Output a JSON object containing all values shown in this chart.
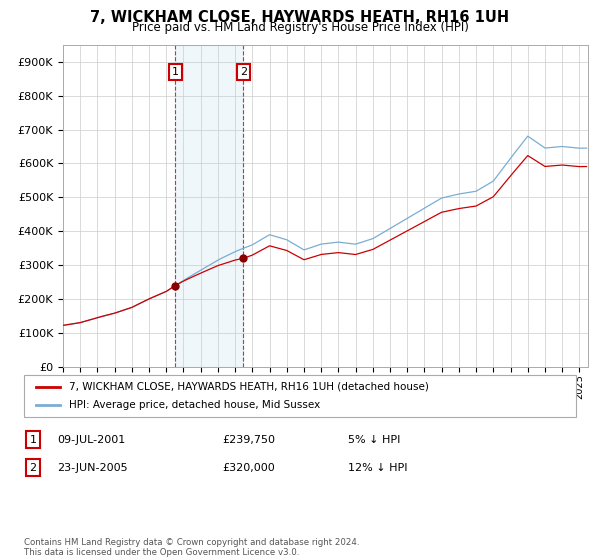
{
  "title": "7, WICKHAM CLOSE, HAYWARDS HEATH, RH16 1UH",
  "subtitle": "Price paid vs. HM Land Registry's House Price Index (HPI)",
  "ylabel_ticks": [
    "£0",
    "£100K",
    "£200K",
    "£300K",
    "£400K",
    "£500K",
    "£600K",
    "£700K",
    "£800K",
    "£900K"
  ],
  "ylim": [
    0,
    950000
  ],
  "xlim_start": 1995.0,
  "xlim_end": 2025.5,
  "transaction1_x": 2001.52,
  "transaction1_y": 239750,
  "transaction1_label": "1",
  "transaction1_date": "09-JUL-2001",
  "transaction1_price": "£239,750",
  "transaction1_hpi": "5% ↓ HPI",
  "transaction2_x": 2005.47,
  "transaction2_y": 320000,
  "transaction2_label": "2",
  "transaction2_date": "23-JUN-2005",
  "transaction2_price": "£320,000",
  "transaction2_hpi": "12% ↓ HPI",
  "shaded_region_start": 2001.52,
  "shaded_region_end": 2005.47,
  "line_color_property": "#cc0000",
  "line_color_hpi": "#7aadd4",
  "transaction_marker_color": "#880000",
  "footnote": "Contains HM Land Registry data © Crown copyright and database right 2024.\nThis data is licensed under the Open Government Licence v3.0.",
  "legend_property": "7, WICKHAM CLOSE, HAYWARDS HEATH, RH16 1UH (detached house)",
  "legend_hpi": "HPI: Average price, detached house, Mid Sussex",
  "background_color": "#ffffff",
  "grid_color": "#cccccc"
}
